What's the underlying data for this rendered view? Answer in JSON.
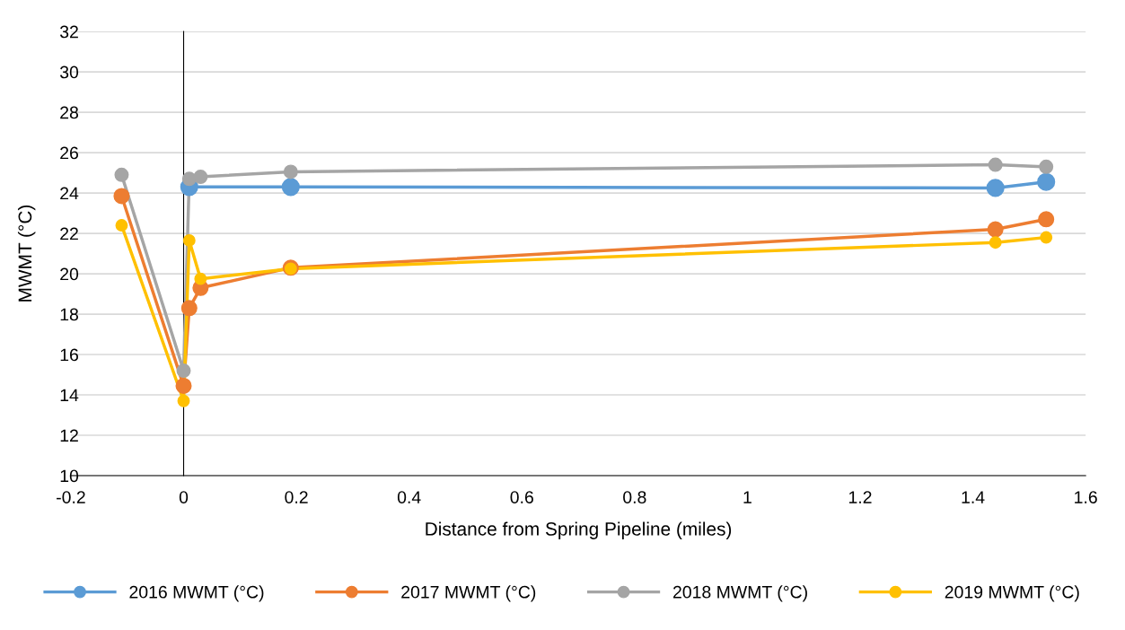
{
  "chart_data": {
    "type": "line",
    "xlabel": "Distance from Spring Pipeline (miles)",
    "ylabel": "MWMT (°C)",
    "xlim": [
      -0.2,
      1.6
    ],
    "xticks": [
      -0.2,
      0,
      0.2,
      0.4,
      0.6,
      0.8,
      1,
      1.2,
      1.4,
      1.6
    ],
    "ylim": [
      10,
      32
    ],
    "yticks": [
      10,
      12,
      14,
      16,
      18,
      20,
      22,
      24,
      26,
      28,
      30,
      32
    ],
    "grid": "y",
    "legend": "bottom",
    "marker": "circle",
    "line_style": "solid",
    "series": [
      {
        "name": "2016 MWMT (°C)",
        "color": "#5b9bd5",
        "x": [
          0.01,
          0.19,
          1.44,
          1.53
        ],
        "values": [
          24.3,
          24.3,
          24.25,
          24.55
        ]
      },
      {
        "name": "2017 MWMT (°C)",
        "color": "#ed7d31",
        "x": [
          -0.11,
          0,
          0.01,
          0.03,
          0.19,
          1.44,
          1.53
        ],
        "values": [
          23.85,
          14.45,
          18.3,
          19.3,
          20.3,
          22.2,
          22.7
        ]
      },
      {
        "name": "2018 MWMT (°C)",
        "color": "#a5a5a5",
        "x": [
          -0.11,
          0,
          0.01,
          0.03,
          0.19,
          1.44,
          1.53
        ],
        "values": [
          24.9,
          15.2,
          24.7,
          24.8,
          25.05,
          25.4,
          25.3
        ]
      },
      {
        "name": "2019 MWMT (°C)",
        "color": "#ffc000",
        "x": [
          -0.11,
          0,
          0.01,
          0.03,
          0.19,
          1.44,
          1.53
        ],
        "values": [
          22.4,
          13.7,
          21.65,
          19.75,
          20.25,
          21.55,
          21.8
        ]
      }
    ]
  }
}
